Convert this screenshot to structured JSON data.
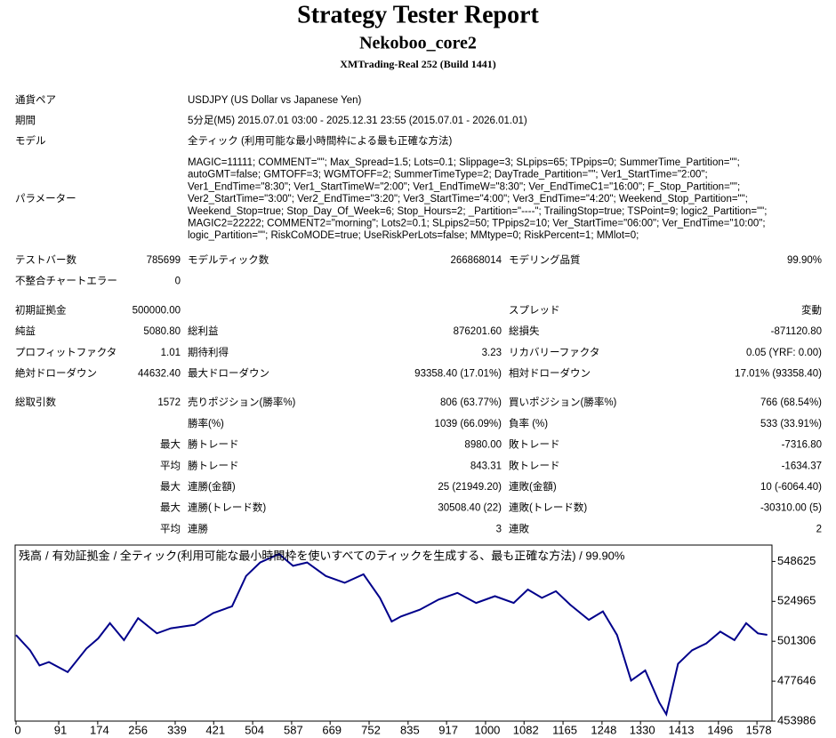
{
  "header": {
    "title": "Strategy Tester Report",
    "subtitle": "Nekoboo_core2",
    "build": "XMTrading-Real 252 (Build 1441)"
  },
  "info": [
    {
      "label": "通貨ペア",
      "value": "USDJPY (US Dollar vs Japanese Yen)"
    },
    {
      "label": "期間",
      "value": "5分足(M5) 2015.07.01 03:00 - 2025.12.31 23:55 (2015.07.01 - 2026.01.01)"
    },
    {
      "label": "モデル",
      "value": "全ティック (利用可能な最小時間枠による最も正確な方法)"
    }
  ],
  "parameters": {
    "label": "パラメーター",
    "lines": [
      "MAGIC=11111; COMMENT=\"\"; Max_Spread=1.5; Lots=0.1; Slippage=3; SLpips=65; TPpips=0; SummerTime_Partition=\"\";",
      "autoGMT=false; GMTOFF=3; WGMTOFF=2; SummerTimeType=2; DayTrade_Partition=\"\"; Ver1_StartTime=\"2:00\";",
      "Ver1_EndTime=\"8:30\"; Ver1_StartTimeW=\"2:00\"; Ver1_EndTimeW=\"8:30\"; Ver_EndTimeC1=\"16:00\"; F_Stop_Partition=\"\";",
      "Ver2_StartTime=\"3:00\"; Ver2_EndTime=\"3:20\"; Ver3_StartTime=\"4:00\"; Ver3_EndTime=\"4:20\"; Weekend_Stop_Partition=\"\";",
      "Weekend_Stop=true; Stop_Day_Of_Week=6; Stop_Hours=2; _Partition=\"----\"; TrailingStop=true; TSPoint=9; logic2_Partition=\"\";",
      "MAGIC2=22222; COMMENT2=\"morning\"; Lots2=0.1; SLpips2=50; TPpips2=10; Ver_StartTime=\"06:00\"; Ver_EndTime=\"10:00\";",
      "logic_Partition=\"\"; RiskCoMODE=true; UseRiskPerLots=false; MMtype=0; RiskPercent=1; MMlot=0;"
    ]
  },
  "stats": [
    [
      [
        "テストバー数",
        "785699",
        "モデルティック数",
        "266868014",
        "モデリング品質",
        "99.90%"
      ],
      [
        "不整合チャートエラー",
        "0",
        null,
        null,
        null,
        null
      ]
    ],
    [
      [
        "初期証拠金",
        "500000.00",
        null,
        null,
        "スプレッド",
        "変動"
      ],
      [
        "純益",
        "5080.80",
        "総利益",
        "876201.60",
        "総損失",
        "-871120.80"
      ],
      [
        "プロフィットファクタ",
        "1.01",
        "期待利得",
        "3.23",
        "リカバリーファクタ",
        "0.05 (YRF: 0.00)"
      ],
      [
        "絶対ドローダウン",
        "44632.40",
        "最大ドローダウン",
        "93358.40 (17.01%)",
        "相対ドローダウン",
        "17.01% (93358.40)"
      ]
    ],
    [
      [
        "総取引数",
        "1572",
        "売りポジション(勝率%)",
        "806 (63.77%)",
        "買いポジション(勝率%)",
        "766 (68.54%)"
      ],
      [
        null,
        null,
        "勝率(%)",
        "1039 (66.09%)",
        "負率 (%)",
        "533 (33.91%)"
      ],
      [
        null,
        "最大",
        "勝トレード",
        "8980.00",
        "敗トレード",
        "-7316.80"
      ],
      [
        null,
        "平均",
        "勝トレード",
        "843.31",
        "敗トレード",
        "-1634.37"
      ],
      [
        null,
        "最大",
        "連勝(金額)",
        "25 (21949.20)",
        "連敗(金額)",
        "10 (-6064.40)"
      ],
      [
        null,
        "最大",
        "連勝(トレード数)",
        "30508.40 (22)",
        "連敗(トレード数)",
        "-30310.00 (5)"
      ],
      [
        null,
        "平均",
        "連勝",
        "3",
        "連敗",
        "2"
      ]
    ]
  ],
  "chart_data": {
    "type": "line",
    "x": [
      0,
      30,
      50,
      70,
      110,
      150,
      175,
      200,
      230,
      260,
      300,
      330,
      380,
      420,
      460,
      490,
      520,
      560,
      590,
      620,
      660,
      700,
      740,
      775,
      800,
      820,
      860,
      900,
      940,
      980,
      1020,
      1060,
      1090,
      1120,
      1150,
      1180,
      1220,
      1250,
      1280,
      1310,
      1340,
      1370,
      1385,
      1410,
      1440,
      1470,
      1500,
      1530,
      1555,
      1580,
      1600
    ],
    "series": [
      {
        "name": "残高",
        "color": "#00008b",
        "values": [
          505000,
          496000,
          487000,
          489000,
          483000,
          497000,
          503000,
          512000,
          502000,
          515000,
          506000,
          509000,
          511000,
          518000,
          522000,
          540000,
          548000,
          553000,
          546000,
          548000,
          540000,
          536000,
          541000,
          527000,
          513000,
          516000,
          520000,
          526000,
          530000,
          524000,
          528000,
          524000,
          532000,
          527000,
          531000,
          523000,
          514000,
          519000,
          505000,
          478000,
          484000,
          465000,
          458000,
          488000,
          496000,
          500000,
          507000,
          502000,
          512000,
          506000,
          505080
        ]
      }
    ],
    "legend_rest": [
      {
        "text": "/",
        "color": "#000000"
      },
      {
        "text": "有効証拠金",
        "color": "#008000"
      },
      {
        "text": "/ 全ティック(利用可能な最小時間枠を使いすべてのティックを生成する、最も正確な方法) / 99.90%",
        "color": "#000000"
      }
    ],
    "xlim": [
      0,
      1610
    ],
    "ylim": [
      453986,
      557800
    ],
    "xticks": [
      0,
      91,
      174,
      256,
      339,
      421,
      504,
      587,
      669,
      752,
      835,
      917,
      1000,
      1082,
      1165,
      1248,
      1330,
      1413,
      1496,
      1578
    ],
    "yticks": [
      453986,
      477646,
      501306,
      524965,
      548625
    ]
  }
}
